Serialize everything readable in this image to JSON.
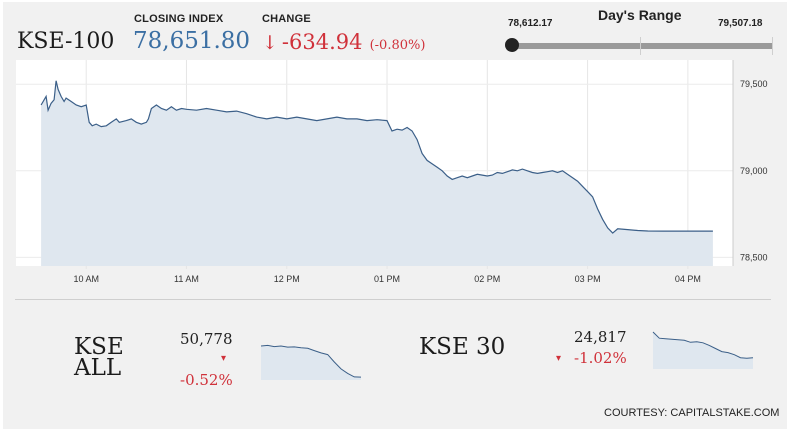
{
  "header": {
    "index_name": "KSE-100",
    "closing_label": "CLOSING INDEX",
    "closing_value": "78,651.80",
    "change_label": "CHANGE",
    "change_arrow": "↓",
    "change_value": "-634.94",
    "change_pct": "(-0.80%)"
  },
  "range": {
    "title": "Day's Range",
    "low": "78,612.17",
    "high": "79,507.18",
    "position": 0.0
  },
  "chart_data": {
    "type": "area",
    "x_ticks": [
      "10 AM",
      "11 AM",
      "12 PM",
      "01 PM",
      "02 PM",
      "03 PM",
      "04 PM"
    ],
    "y_ticks": [
      "79,500",
      "79,000",
      "78,500"
    ],
    "ylim": [
      78450,
      79640
    ],
    "series": [
      {
        "values": [
          [
            9.55,
            79380
          ],
          [
            9.6,
            79430
          ],
          [
            9.62,
            79350
          ],
          [
            9.65,
            79390
          ],
          [
            9.68,
            79410
          ],
          [
            9.7,
            79520
          ],
          [
            9.72,
            79470
          ],
          [
            9.75,
            79430
          ],
          [
            9.78,
            79400
          ],
          [
            9.8,
            79420
          ],
          [
            9.85,
            79400
          ],
          [
            9.9,
            79380
          ],
          [
            9.95,
            79370
          ],
          [
            10.0,
            79380
          ],
          [
            10.03,
            79280
          ],
          [
            10.06,
            79260
          ],
          [
            10.1,
            79270
          ],
          [
            10.15,
            79255
          ],
          [
            10.2,
            79260
          ],
          [
            10.25,
            79280
          ],
          [
            10.3,
            79300
          ],
          [
            10.33,
            79280
          ],
          [
            10.4,
            79290
          ],
          [
            10.45,
            79300
          ],
          [
            10.5,
            79280
          ],
          [
            10.55,
            79270
          ],
          [
            10.6,
            79280
          ],
          [
            10.62,
            79300
          ],
          [
            10.65,
            79360
          ],
          [
            10.7,
            79380
          ],
          [
            10.75,
            79360
          ],
          [
            10.8,
            79350
          ],
          [
            10.85,
            79370
          ],
          [
            10.9,
            79350
          ],
          [
            10.95,
            79360
          ],
          [
            11.0,
            79355
          ],
          [
            11.1,
            79350
          ],
          [
            11.2,
            79360
          ],
          [
            11.3,
            79350
          ],
          [
            11.4,
            79340
          ],
          [
            11.5,
            79345
          ],
          [
            11.6,
            79330
          ],
          [
            11.7,
            79310
          ],
          [
            11.8,
            79300
          ],
          [
            11.9,
            79310
          ],
          [
            12.0,
            79300
          ],
          [
            12.1,
            79310
          ],
          [
            12.2,
            79300
          ],
          [
            12.3,
            79290
          ],
          [
            12.4,
            79300
          ],
          [
            12.5,
            79310
          ],
          [
            12.6,
            79300
          ],
          [
            12.7,
            79300
          ],
          [
            12.8,
            79290
          ],
          [
            12.9,
            79295
          ],
          [
            13.0,
            79290
          ],
          [
            13.05,
            79230
          ],
          [
            13.1,
            79240
          ],
          [
            13.15,
            79235
          ],
          [
            13.2,
            79250
          ],
          [
            13.25,
            79230
          ],
          [
            13.3,
            79180
          ],
          [
            13.35,
            79100
          ],
          [
            13.4,
            79060
          ],
          [
            13.45,
            79040
          ],
          [
            13.5,
            79020
          ],
          [
            13.55,
            79000
          ],
          [
            13.6,
            78970
          ],
          [
            13.65,
            78950
          ],
          [
            13.7,
            78960
          ],
          [
            13.75,
            78970
          ],
          [
            13.8,
            78960
          ],
          [
            13.85,
            78970
          ],
          [
            13.9,
            78980
          ],
          [
            13.95,
            78975
          ],
          [
            14.0,
            78970
          ],
          [
            14.05,
            78975
          ],
          [
            14.1,
            78990
          ],
          [
            14.15,
            78985
          ],
          [
            14.2,
            78995
          ],
          [
            14.25,
            79005
          ],
          [
            14.3,
            79000
          ],
          [
            14.35,
            79010
          ],
          [
            14.4,
            79000
          ],
          [
            14.45,
            78990
          ],
          [
            14.5,
            78985
          ],
          [
            14.55,
            78990
          ],
          [
            14.6,
            78995
          ],
          [
            14.65,
            79000
          ],
          [
            14.7,
            78990
          ],
          [
            14.75,
            79000
          ],
          [
            14.8,
            78980
          ],
          [
            14.85,
            78960
          ],
          [
            14.9,
            78940
          ],
          [
            14.95,
            78910
          ],
          [
            15.0,
            78880
          ],
          [
            15.05,
            78850
          ],
          [
            15.1,
            78780
          ],
          [
            15.15,
            78720
          ],
          [
            15.2,
            78670
          ],
          [
            15.25,
            78640
          ],
          [
            15.3,
            78665
          ],
          [
            15.4,
            78660
          ],
          [
            15.5,
            78655
          ],
          [
            15.6,
            78652
          ],
          [
            15.75,
            78651.8
          ],
          [
            15.95,
            78651.8
          ],
          [
            16.25,
            78651.8
          ]
        ]
      }
    ]
  },
  "minis": [
    {
      "name": "KSE ALL",
      "value": "50,778",
      "arrow": "▾",
      "change": "-0.52%",
      "spark": [
        79380,
        79390,
        79370,
        79380,
        79360,
        79365,
        79350,
        79340,
        79300,
        79260,
        79230,
        79100,
        78980,
        78900,
        78840,
        78835
      ]
    },
    {
      "name": "KSE 30",
      "value": "24,817",
      "arrow": "▾",
      "change": "-1.02%",
      "spark": [
        79500,
        79380,
        79370,
        79360,
        79350,
        79340,
        79300,
        79310,
        79290,
        79240,
        79180,
        79120,
        79100,
        79060,
        79000,
        78990,
        79000
      ]
    }
  ],
  "footer": {
    "courtesy": "COURTESY: CAPITALSTAKE.COM"
  },
  "colors": {
    "line": "#3b5f88",
    "fill": "#dfe7ef",
    "up_down_red": "#d0313a",
    "blue": "#3b6fa3",
    "track": "#9a9a9a"
  }
}
